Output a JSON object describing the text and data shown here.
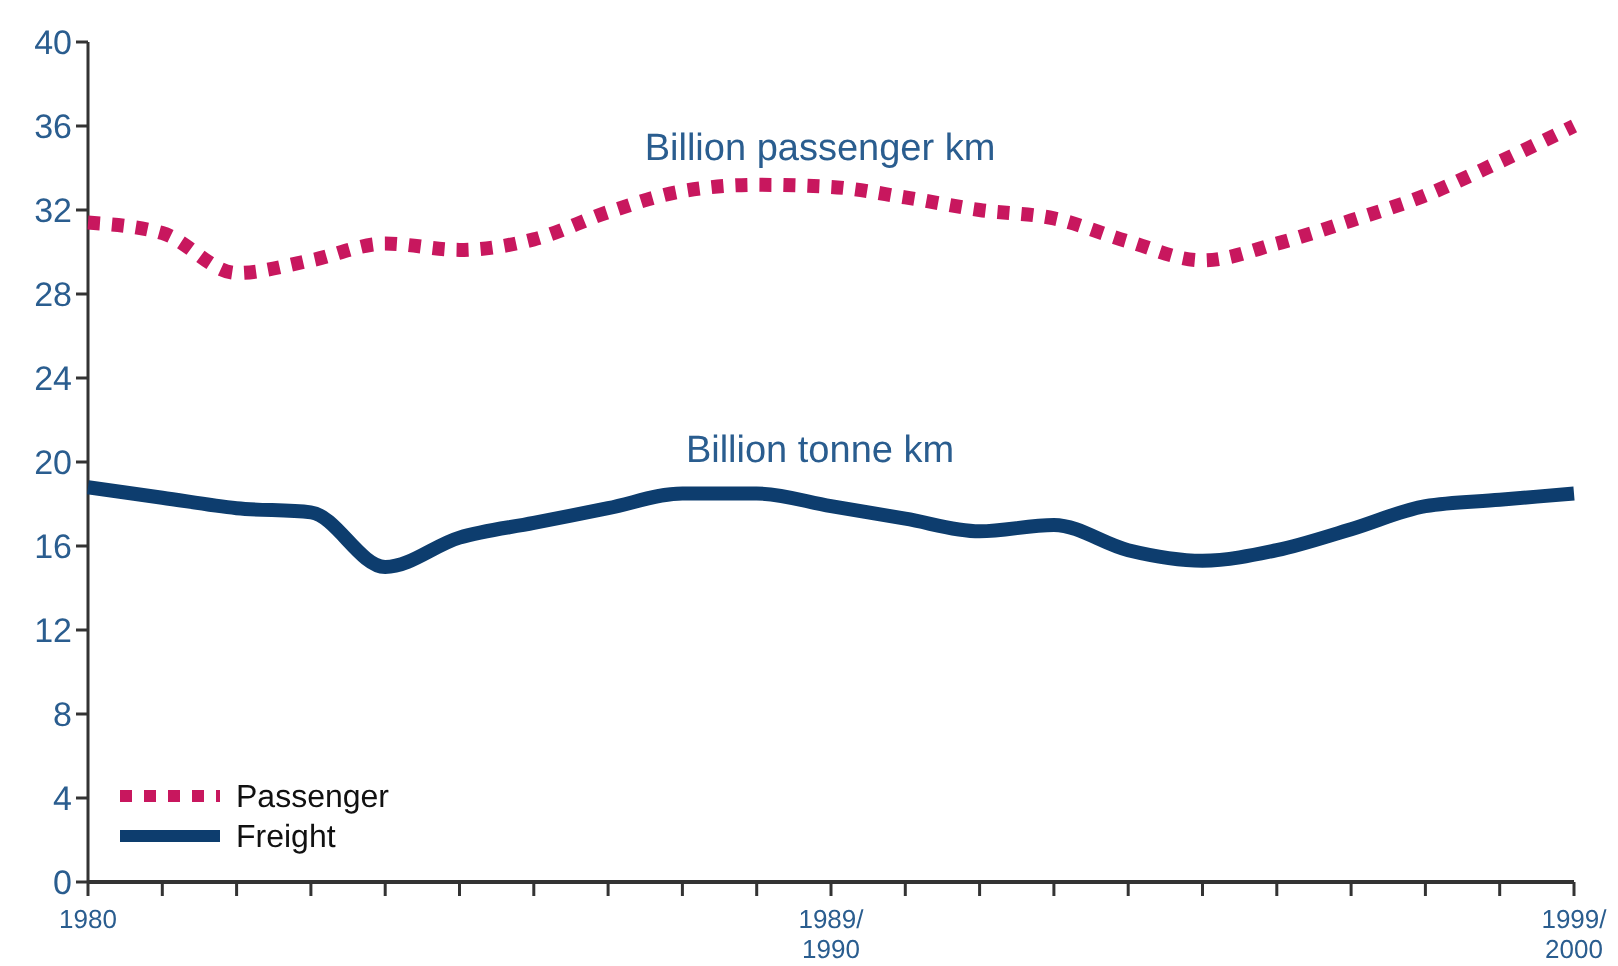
{
  "chart_data": {
    "type": "line",
    "categories": [
      "1980",
      null,
      null,
      null,
      null,
      null,
      null,
      null,
      null,
      null,
      "1989/\n1990",
      null,
      null,
      null,
      null,
      null,
      null,
      null,
      null,
      null,
      "1999/\n2000"
    ],
    "ylim": [
      0,
      40
    ],
    "yticks": [
      0,
      4,
      8,
      12,
      16,
      20,
      24,
      28,
      32,
      36,
      40
    ],
    "grid": false,
    "legend": "bottom left",
    "series": [
      {
        "name": "Passenger",
        "color": "#c8175e",
        "line_style": "dotted",
        "values": [
          31.4,
          30.9,
          29.0,
          29.6,
          30.4,
          30.1,
          30.6,
          31.9,
          32.9,
          33.2,
          33.1,
          32.6,
          32.0,
          31.6,
          30.5,
          29.6,
          30.4,
          31.5,
          32.7,
          34.3,
          36.0
        ]
      },
      {
        "name": "Freight",
        "color": "#0d3d6e",
        "line_style": "solid",
        "values": [
          18.8,
          18.3,
          17.8,
          17.6,
          15.0,
          16.4,
          17.1,
          17.8,
          18.5,
          18.5,
          17.9,
          17.3,
          16.7,
          17.0,
          15.8,
          15.3,
          15.8,
          16.8,
          17.9,
          18.2,
          18.5
        ]
      }
    ],
    "annotations": [
      "Billion passenger km",
      "Billion tonne km"
    ]
  }
}
